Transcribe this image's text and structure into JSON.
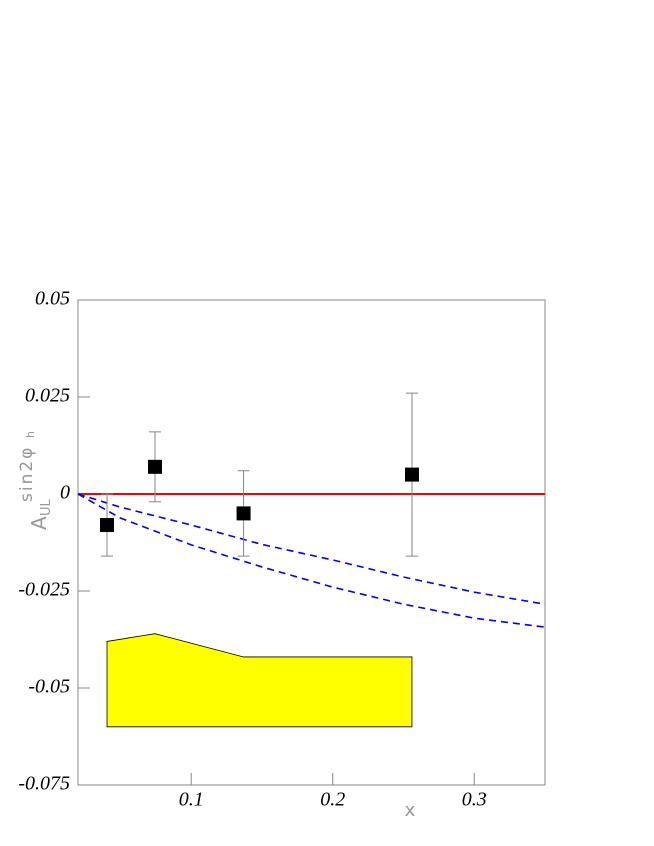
{
  "chart_data": {
    "type": "physics-plot",
    "xlabel": "x",
    "ylabel": {
      "main": "A",
      "sub": "UL",
      "sup": "sin2φ",
      "supsub": "h"
    },
    "xlim": [
      0.02,
      0.35
    ],
    "ylim": [
      -0.075,
      0.05
    ],
    "xticks": [
      0.1,
      0.2,
      0.3
    ],
    "yticks": [
      -0.075,
      -0.05,
      -0.025,
      0,
      0.025,
      0.05
    ],
    "series": [
      {
        "type": "band",
        "color": "#ffff00",
        "x": [
          0.0405,
          0.0744,
          0.137,
          0.256
        ],
        "upper": [
          -0.038,
          -0.036,
          -0.042,
          -0.042
        ],
        "lower": [
          -0.06,
          -0.06,
          -0.06,
          -0.06
        ]
      },
      {
        "type": "line",
        "color": "#ff0000",
        "dashed": false,
        "x": [
          0.02,
          0.35
        ],
        "values": [
          0,
          0
        ]
      },
      {
        "type": "line",
        "color": "#0000ff",
        "dashed": true,
        "x": [
          0.02,
          0.05,
          0.1,
          0.15,
          0.2,
          0.25,
          0.3,
          0.35
        ],
        "values": [
          0,
          -0.0034,
          -0.008,
          -0.013,
          -0.017,
          -0.0214,
          -0.0253,
          -0.0284
        ]
      },
      {
        "type": "line",
        "color": "#0000ff",
        "dashed": true,
        "x": [
          0.02,
          0.05,
          0.1,
          0.15,
          0.2,
          0.25,
          0.3,
          0.35
        ],
        "values": [
          0,
          -0.0062,
          -0.0131,
          -0.0188,
          -0.024,
          -0.0284,
          -0.032,
          -0.0343
        ]
      },
      {
        "type": "points",
        "color": "#000000",
        "x": [
          0.0405,
          0.0744,
          0.137,
          0.256
        ],
        "values": [
          -0.008,
          0.007,
          -0.005,
          0.005
        ],
        "errors": [
          0.008,
          0.009,
          0.011,
          0.021
        ]
      }
    ]
  }
}
